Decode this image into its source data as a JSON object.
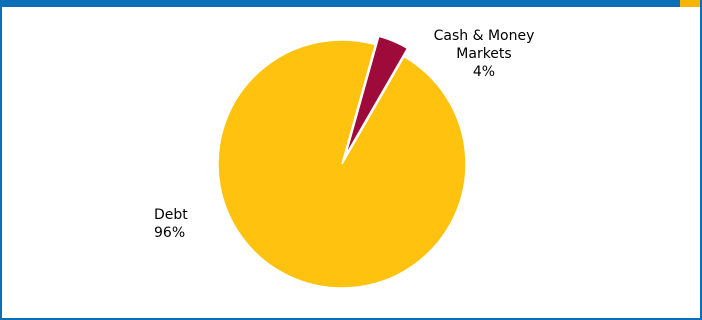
{
  "chart_data": {
    "type": "pie",
    "title": "",
    "slices": [
      {
        "label": "Debt",
        "value": 96,
        "pct_label": "96%",
        "color": "#ffc20e"
      },
      {
        "label": "Cash & Money Markets",
        "label_lines": [
          "Cash & Money",
          "Markets"
        ],
        "value": 4,
        "pct_label": "4%",
        "color": "#9e0b3a"
      }
    ],
    "legend": "none"
  },
  "colors": {
    "frame": "#0a6fb6",
    "frame_accent": "#f6b600"
  }
}
